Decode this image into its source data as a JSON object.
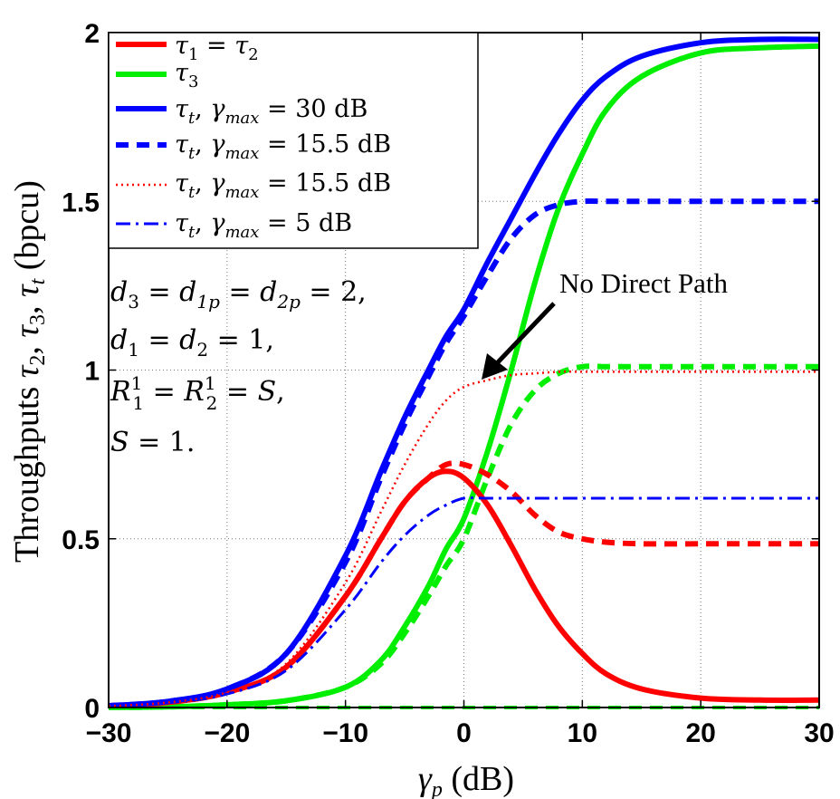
{
  "chart_data": {
    "type": "line",
    "xlabel": "γp (dB)",
    "ylabel": "Throughputs τ2, τ3, τt (bpcu)",
    "xlim": [
      -30,
      30
    ],
    "ylim": [
      0,
      2
    ],
    "x_ticks": [
      "−30",
      "−20",
      "−10",
      "0",
      "10",
      "20",
      "30"
    ],
    "y_ticks": [
      "0",
      "0.5",
      "1",
      "1.5",
      "2"
    ],
    "grid": "dotted",
    "legend_position": "top-left",
    "x": [
      -30,
      -25,
      -20,
      -15,
      -10,
      -7,
      -5,
      -3,
      -1.5,
      0,
      2,
      4,
      6,
      8,
      10,
      12,
      15,
      20,
      25,
      30
    ],
    "series": [
      {
        "name": "τ1 = τ2",
        "color": "#ff0000",
        "style": "solid",
        "width": 6,
        "values": [
          0.005,
          0.015,
          0.045,
          0.12,
          0.33,
          0.5,
          0.61,
          0.68,
          0.7,
          0.68,
          0.6,
          0.48,
          0.35,
          0.24,
          0.16,
          0.1,
          0.055,
          0.028,
          0.022,
          0.022
        ]
      },
      {
        "name": "τ3",
        "color": "#00ee00",
        "style": "solid",
        "width": 6,
        "values": [
          0.0,
          0.002,
          0.008,
          0.02,
          0.06,
          0.14,
          0.24,
          0.36,
          0.47,
          0.56,
          0.76,
          1.0,
          1.26,
          1.48,
          1.64,
          1.77,
          1.87,
          1.94,
          1.955,
          1.96
        ]
      },
      {
        "name": "τt, γmax = 30 dB",
        "color": "#0000ff",
        "style": "solid",
        "width": 6,
        "values": [
          0.005,
          0.018,
          0.055,
          0.16,
          0.45,
          0.7,
          0.86,
          1.0,
          1.1,
          1.18,
          1.32,
          1.45,
          1.58,
          1.7,
          1.8,
          1.87,
          1.93,
          1.97,
          1.98,
          1.98
        ]
      },
      {
        "name": "τt, γmax = 15.5 dB",
        "color": "#0000ff",
        "style": "dashed",
        "width": 6,
        "values": [
          0.005,
          0.018,
          0.055,
          0.16,
          0.43,
          0.68,
          0.84,
          0.98,
          1.08,
          1.16,
          1.28,
          1.39,
          1.46,
          1.49,
          1.5,
          1.5,
          1.5,
          1.5,
          1.5,
          1.5
        ]
      },
      {
        "name": "τt, γmax = 15.5 dB",
        "color": "#ff0000",
        "style": "dotted",
        "width": 2.5,
        "values": [
          0.004,
          0.015,
          0.045,
          0.13,
          0.37,
          0.58,
          0.72,
          0.84,
          0.91,
          0.95,
          0.97,
          0.985,
          0.99,
          0.995,
          0.995,
          0.995,
          0.995,
          0.995,
          0.995,
          0.995
        ]
      },
      {
        "name": "τt, γmax = 5 dB",
        "color": "#0000ff",
        "style": "dashdot",
        "width": 3,
        "values": [
          0.004,
          0.014,
          0.04,
          0.11,
          0.29,
          0.43,
          0.51,
          0.57,
          0.6,
          0.62,
          0.62,
          0.62,
          0.62,
          0.62,
          0.62,
          0.62,
          0.62,
          0.62,
          0.62,
          0.62
        ]
      },
      {
        "name": "",
        "color": "#ff0000",
        "style": "dashed",
        "width": 6,
        "values": [
          0.005,
          0.015,
          0.045,
          0.12,
          0.33,
          0.5,
          0.61,
          0.68,
          0.72,
          0.72,
          0.69,
          0.64,
          0.57,
          0.52,
          0.5,
          0.49,
          0.485,
          0.485,
          0.485,
          0.485
        ]
      },
      {
        "name": "",
        "color": "#00ee00",
        "style": "dashed",
        "width": 6,
        "values": [
          0.0,
          0.002,
          0.008,
          0.02,
          0.06,
          0.13,
          0.22,
          0.33,
          0.42,
          0.5,
          0.68,
          0.84,
          0.94,
          0.99,
          1.01,
          1.01,
          1.01,
          1.01,
          1.01,
          1.01
        ]
      },
      {
        "name": "",
        "color": "#00ee00",
        "style": "dashed",
        "width": 4,
        "values": [
          0,
          0,
          0,
          0,
          0,
          0,
          0,
          0,
          0,
          0,
          0,
          0,
          0,
          0,
          0,
          0,
          0,
          0,
          0,
          0
        ]
      }
    ],
    "annotations": {
      "params": [
        "d3 = d1p = d2p = 2,",
        "d1 = d2 = 1,",
        "R11 = R21 = S,",
        "S = 1."
      ],
      "arrow_label": "No Direct Path",
      "arrow_tip": {
        "x": 2,
        "y": 0.97
      }
    }
  }
}
